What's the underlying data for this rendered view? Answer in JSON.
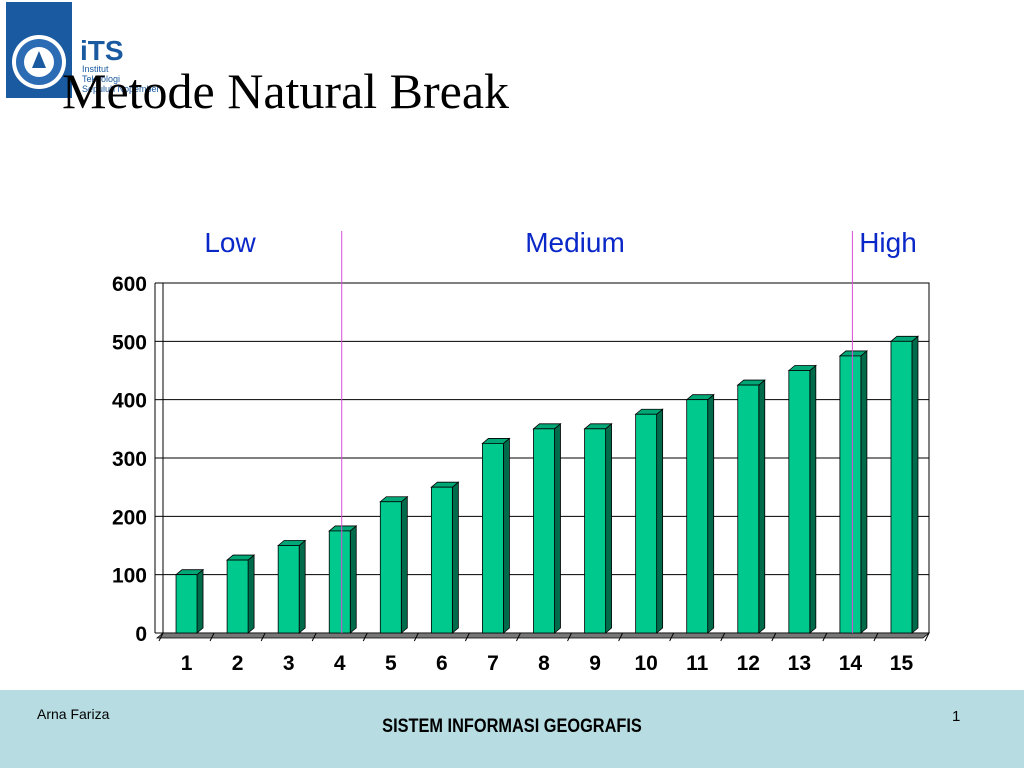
{
  "slide": {
    "title": "Metode Natural Break",
    "logo": {
      "name": "iTS",
      "line1": "Institut",
      "line2": "Teknologi",
      "line3": "Sepuluh Nopember"
    }
  },
  "footer": {
    "author": "Arna Fariza",
    "course": "SISTEM INFORMASI GEOGRAFIS",
    "page": "1"
  },
  "chart_data": {
    "type": "bar",
    "categories": [
      "1",
      "2",
      "3",
      "4",
      "5",
      "6",
      "7",
      "8",
      "9",
      "10",
      "11",
      "12",
      "13",
      "14",
      "15"
    ],
    "values": [
      100,
      125,
      150,
      175,
      225,
      250,
      325,
      350,
      350,
      375,
      400,
      425,
      450,
      475,
      500
    ],
    "ylim": [
      0,
      600
    ],
    "yticks": [
      0,
      100,
      200,
      300,
      400,
      500,
      600
    ],
    "grid": true,
    "class_breaks": [
      3.5,
      13.5
    ],
    "class_labels": [
      "Low",
      "Medium",
      "High"
    ],
    "colors": {
      "bar_front": "#00c98e",
      "bar_top": "#00a877",
      "bar_side": "#006b4b",
      "break_line": "#d64fd6",
      "class_label": "#0a28c8"
    }
  }
}
